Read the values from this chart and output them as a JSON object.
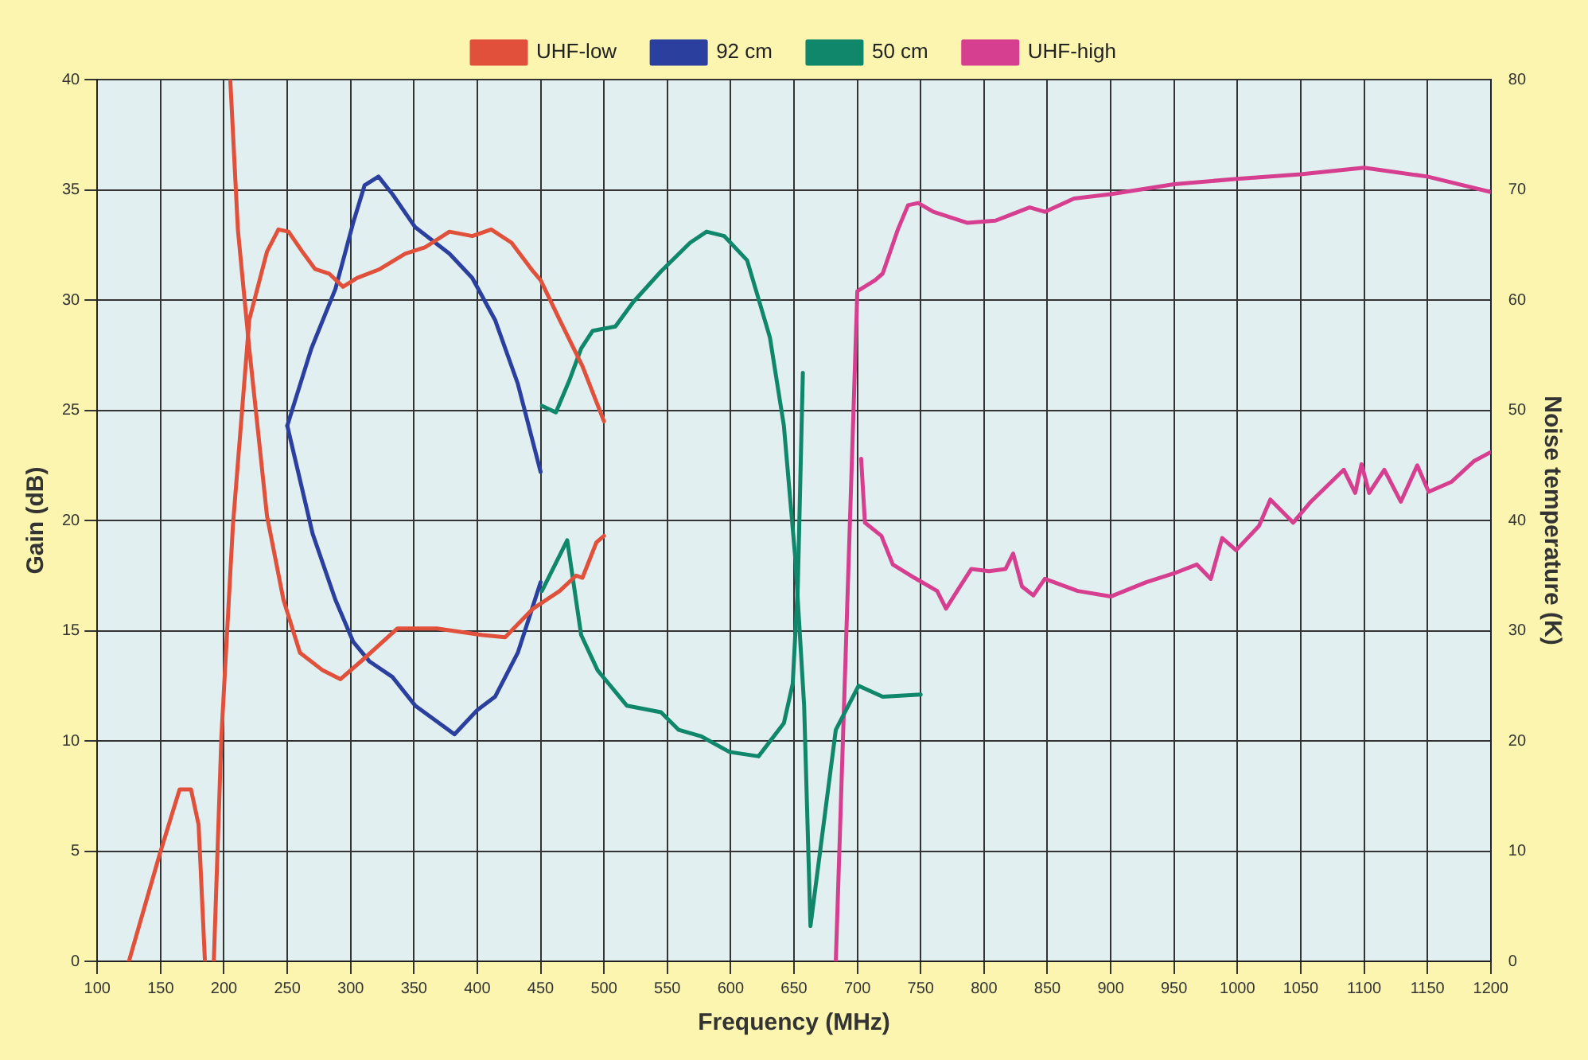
{
  "chart_data": {
    "type": "line",
    "xlabel": "Frequency (MHz)",
    "ylabel": "Gain (dB)",
    "y2label": "Noise temperature (K)",
    "xlim": [
      100,
      1200
    ],
    "xticks": [
      100,
      150,
      200,
      250,
      300,
      350,
      400,
      450,
      500,
      550,
      600,
      650,
      700,
      750,
      800,
      850,
      900,
      950,
      1000,
      1050,
      1100,
      1150,
      1200
    ],
    "ylim": [
      0,
      40
    ],
    "yticks": [
      0,
      5,
      10,
      15,
      20,
      25,
      30,
      35,
      40
    ],
    "y2lim": [
      0,
      80
    ],
    "y2ticks": [
      0,
      10,
      20,
      30,
      40,
      50,
      60,
      70,
      80
    ],
    "grid": true,
    "legend": "top",
    "marker": "none",
    "line_style": "solid",
    "series": [
      {
        "name": "UHF-low",
        "color": "#e0503a",
        "x": [
          125,
          149,
          165,
          174,
          180,
          185,
          188,
          192,
          198,
          207,
          220,
          234,
          243,
          251,
          263,
          272,
          283,
          294,
          305,
          323,
          343,
          359,
          378,
          396,
          411,
          427,
          444,
          450,
          465,
          483,
          500
        ],
        "values": [
          0,
          4.8,
          7.8,
          7.8,
          6.2,
          0,
          null,
          0,
          10.2,
          19.7,
          29.1,
          32.2,
          33.2,
          33.1,
          32.1,
          31.4,
          31.2,
          30.6,
          31,
          31.4,
          32.1,
          32.4,
          33.1,
          32.9,
          33.2,
          32.6,
          31.3,
          30.9,
          29.1,
          27,
          24.5
        ]
      },
      {
        "color": "#e0503a",
        "axis": "y2",
        "x": [
          205,
          211,
          220,
          234,
          247,
          260,
          278,
          292,
          310,
          337,
          368,
          404,
          422,
          444,
          465,
          478,
          483,
          494,
          500
        ],
        "values": [
          80,
          66.4,
          55.6,
          40.4,
          32.8,
          28,
          26.4,
          25.6,
          27.4,
          30.2,
          30.2,
          29.6,
          29.4,
          32,
          33.6,
          35,
          34.8,
          38,
          38.6
        ]
      },
      {
        "name": "92 cm",
        "color": "#2a3f9e",
        "x": [
          250,
          269,
          288,
          302,
          311,
          322,
          333,
          351,
          378,
          396,
          414,
          432,
          450
        ],
        "values": [
          24.3,
          27.8,
          30.5,
          33.5,
          35.2,
          35.6,
          34.8,
          33.3,
          32.1,
          31,
          29.1,
          26.2,
          22.2
        ]
      },
      {
        "color": "#2a3f9e",
        "axis": "y2",
        "x": [
          250,
          270,
          288,
          302,
          315,
          333,
          351,
          382,
          400,
          414,
          432,
          450
        ],
        "values": [
          48.6,
          38.8,
          32.8,
          29,
          27.2,
          25.8,
          23.2,
          20.6,
          22.8,
          24,
          28,
          34.4
        ]
      },
      {
        "name": "50 cm",
        "color": "#10876a",
        "x": [
          451,
          462,
          473,
          482,
          491,
          509,
          523,
          545,
          568,
          581,
          595,
          613,
          631,
          642,
          651,
          658,
          663,
          683,
          701,
          720,
          750
        ],
        "values": [
          25.2,
          24.9,
          26.4,
          27.8,
          28.6,
          28.8,
          29.9,
          31.3,
          32.6,
          33.1,
          32.9,
          31.8,
          28.3,
          24.3,
          18.3,
          11.6,
          1.6,
          10.5,
          12.5,
          12,
          12.1
        ]
      },
      {
        "color": "#10876a",
        "axis": "y2",
        "x": [
          451,
          471,
          482,
          495,
          518,
          545,
          559,
          577,
          599,
          622,
          642,
          649,
          653,
          657
        ],
        "values": [
          33.6,
          38.2,
          29.6,
          26.4,
          23.2,
          22.6,
          21,
          20.4,
          19,
          18.6,
          21.6,
          25.2,
          34,
          53.4
        ]
      },
      {
        "name": "UHF-high",
        "color": "#d63f8f",
        "x": [
          683,
          700,
          714,
          720,
          732,
          740,
          748,
          760,
          787,
          809,
          836,
          848,
          871,
          900,
          950,
          1000,
          1050,
          1100,
          1150,
          1200
        ],
        "values": [
          0,
          30.4,
          30.9,
          31.2,
          33.2,
          34.3,
          34.4,
          34,
          33.5,
          33.6,
          34.2,
          34,
          34.6,
          34.8,
          35.25,
          35.5,
          35.7,
          36,
          35.6,
          34.9
        ]
      },
      {
        "color": "#d63f8f",
        "axis": "y2",
        "x": [
          703,
          706,
          719,
          728,
          745,
          763,
          770,
          781,
          790,
          804,
          817,
          823,
          830,
          839,
          848,
          874,
          900,
          928,
          950,
          968,
          979,
          988,
          999,
          1017,
          1026,
          1044,
          1058,
          1084,
          1093,
          1098,
          1104,
          1116,
          1129,
          1142,
          1151,
          1169,
          1187,
          1200
        ],
        "values": [
          45.6,
          39.8,
          38.6,
          36,
          34.8,
          33.6,
          32,
          34,
          35.6,
          35.4,
          35.6,
          37,
          34,
          33.2,
          34.7,
          33.6,
          33.1,
          34.4,
          35.2,
          36,
          34.7,
          38.4,
          37.3,
          39.5,
          41.9,
          39.8,
          41.7,
          44.6,
          42.5,
          45.1,
          42.5,
          44.6,
          41.7,
          45,
          42.6,
          43.5,
          45.4,
          46.2
        ]
      }
    ]
  }
}
